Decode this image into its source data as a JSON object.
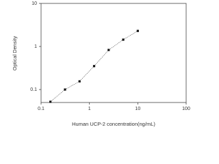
{
  "chart_data": {
    "type": "scatter",
    "x_label": "Human UCP-2 concentration(ng/mL)",
    "y_label": "Optical Density",
    "x": [
      0.156,
      0.313,
      0.625,
      1.25,
      2.5,
      5,
      10
    ],
    "series": [
      {
        "values": [
          0.052,
          0.1,
          0.155,
          0.35,
          0.83,
          1.44,
          2.3
        ],
        "color": "#111111"
      }
    ],
    "xlim": [
      0.1,
      100
    ],
    "ylim": [
      0.05,
      10
    ],
    "xticks": [
      0.1,
      1,
      10,
      100
    ],
    "yticks": [
      0.1,
      1,
      10
    ],
    "xscale": "log",
    "yscale": "log",
    "fit_line": true,
    "grid": false
  }
}
